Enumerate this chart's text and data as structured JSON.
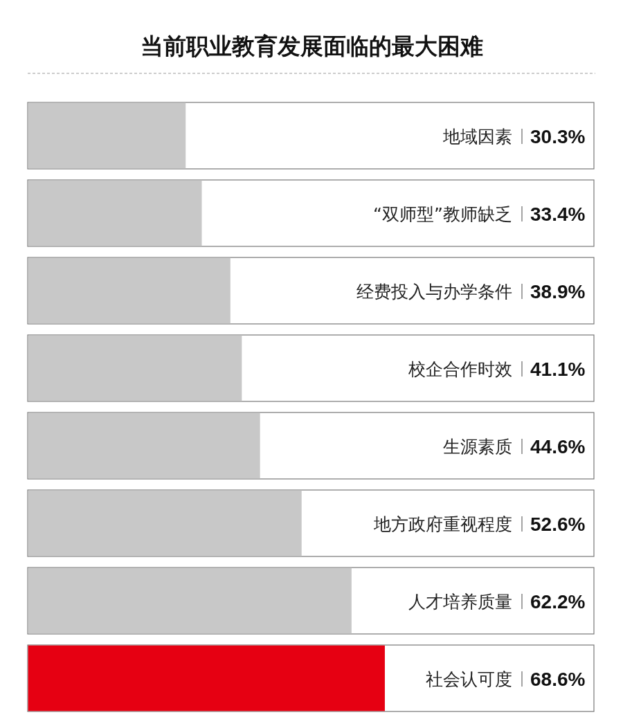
{
  "chart_data": {
    "type": "bar",
    "orientation": "horizontal",
    "title": "当前职业教育发展面临的最大困难",
    "categories": [
      "地域因素",
      "“双师型”教师缺乏",
      "经费投入与办学条件",
      "校企合作时效",
      "生源素质",
      "地方政府重视程度",
      "人才培养质量",
      "社会认可度"
    ],
    "values": [
      30.3,
      33.4,
      38.9,
      41.1,
      44.6,
      52.6,
      62.2,
      68.6
    ],
    "value_labels": [
      "30.3%",
      "33.4%",
      "38.9%",
      "41.1%",
      "44.6%",
      "52.6%",
      "62.2%",
      "68.6%"
    ],
    "colors": [
      "#c8c8c8",
      "#c8c8c8",
      "#c8c8c8",
      "#c8c8c8",
      "#c8c8c8",
      "#c8c8c8",
      "#c8c8c8",
      "#e60012"
    ]
  }
}
